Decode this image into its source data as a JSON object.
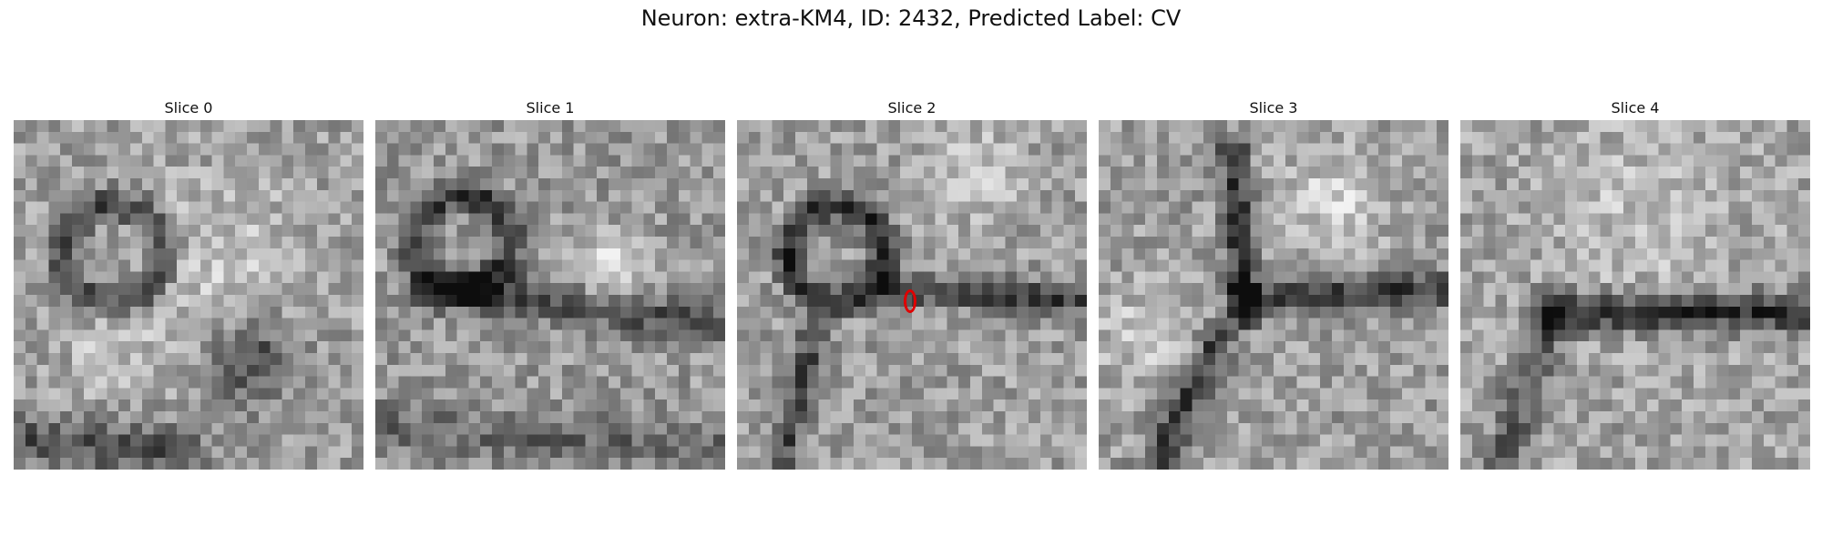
{
  "figure": {
    "title": "Neuron: extra-KM4, ID: 2432, Predicted Label: CV"
  },
  "slices": [
    {
      "label": "Slice 0"
    },
    {
      "label": "Slice 1"
    },
    {
      "label": "Slice 2"
    },
    {
      "label": "Slice 3"
    },
    {
      "label": "Slice 4"
    }
  ],
  "colors": {
    "marker": "#e00000",
    "colormap": "grayscale"
  }
}
